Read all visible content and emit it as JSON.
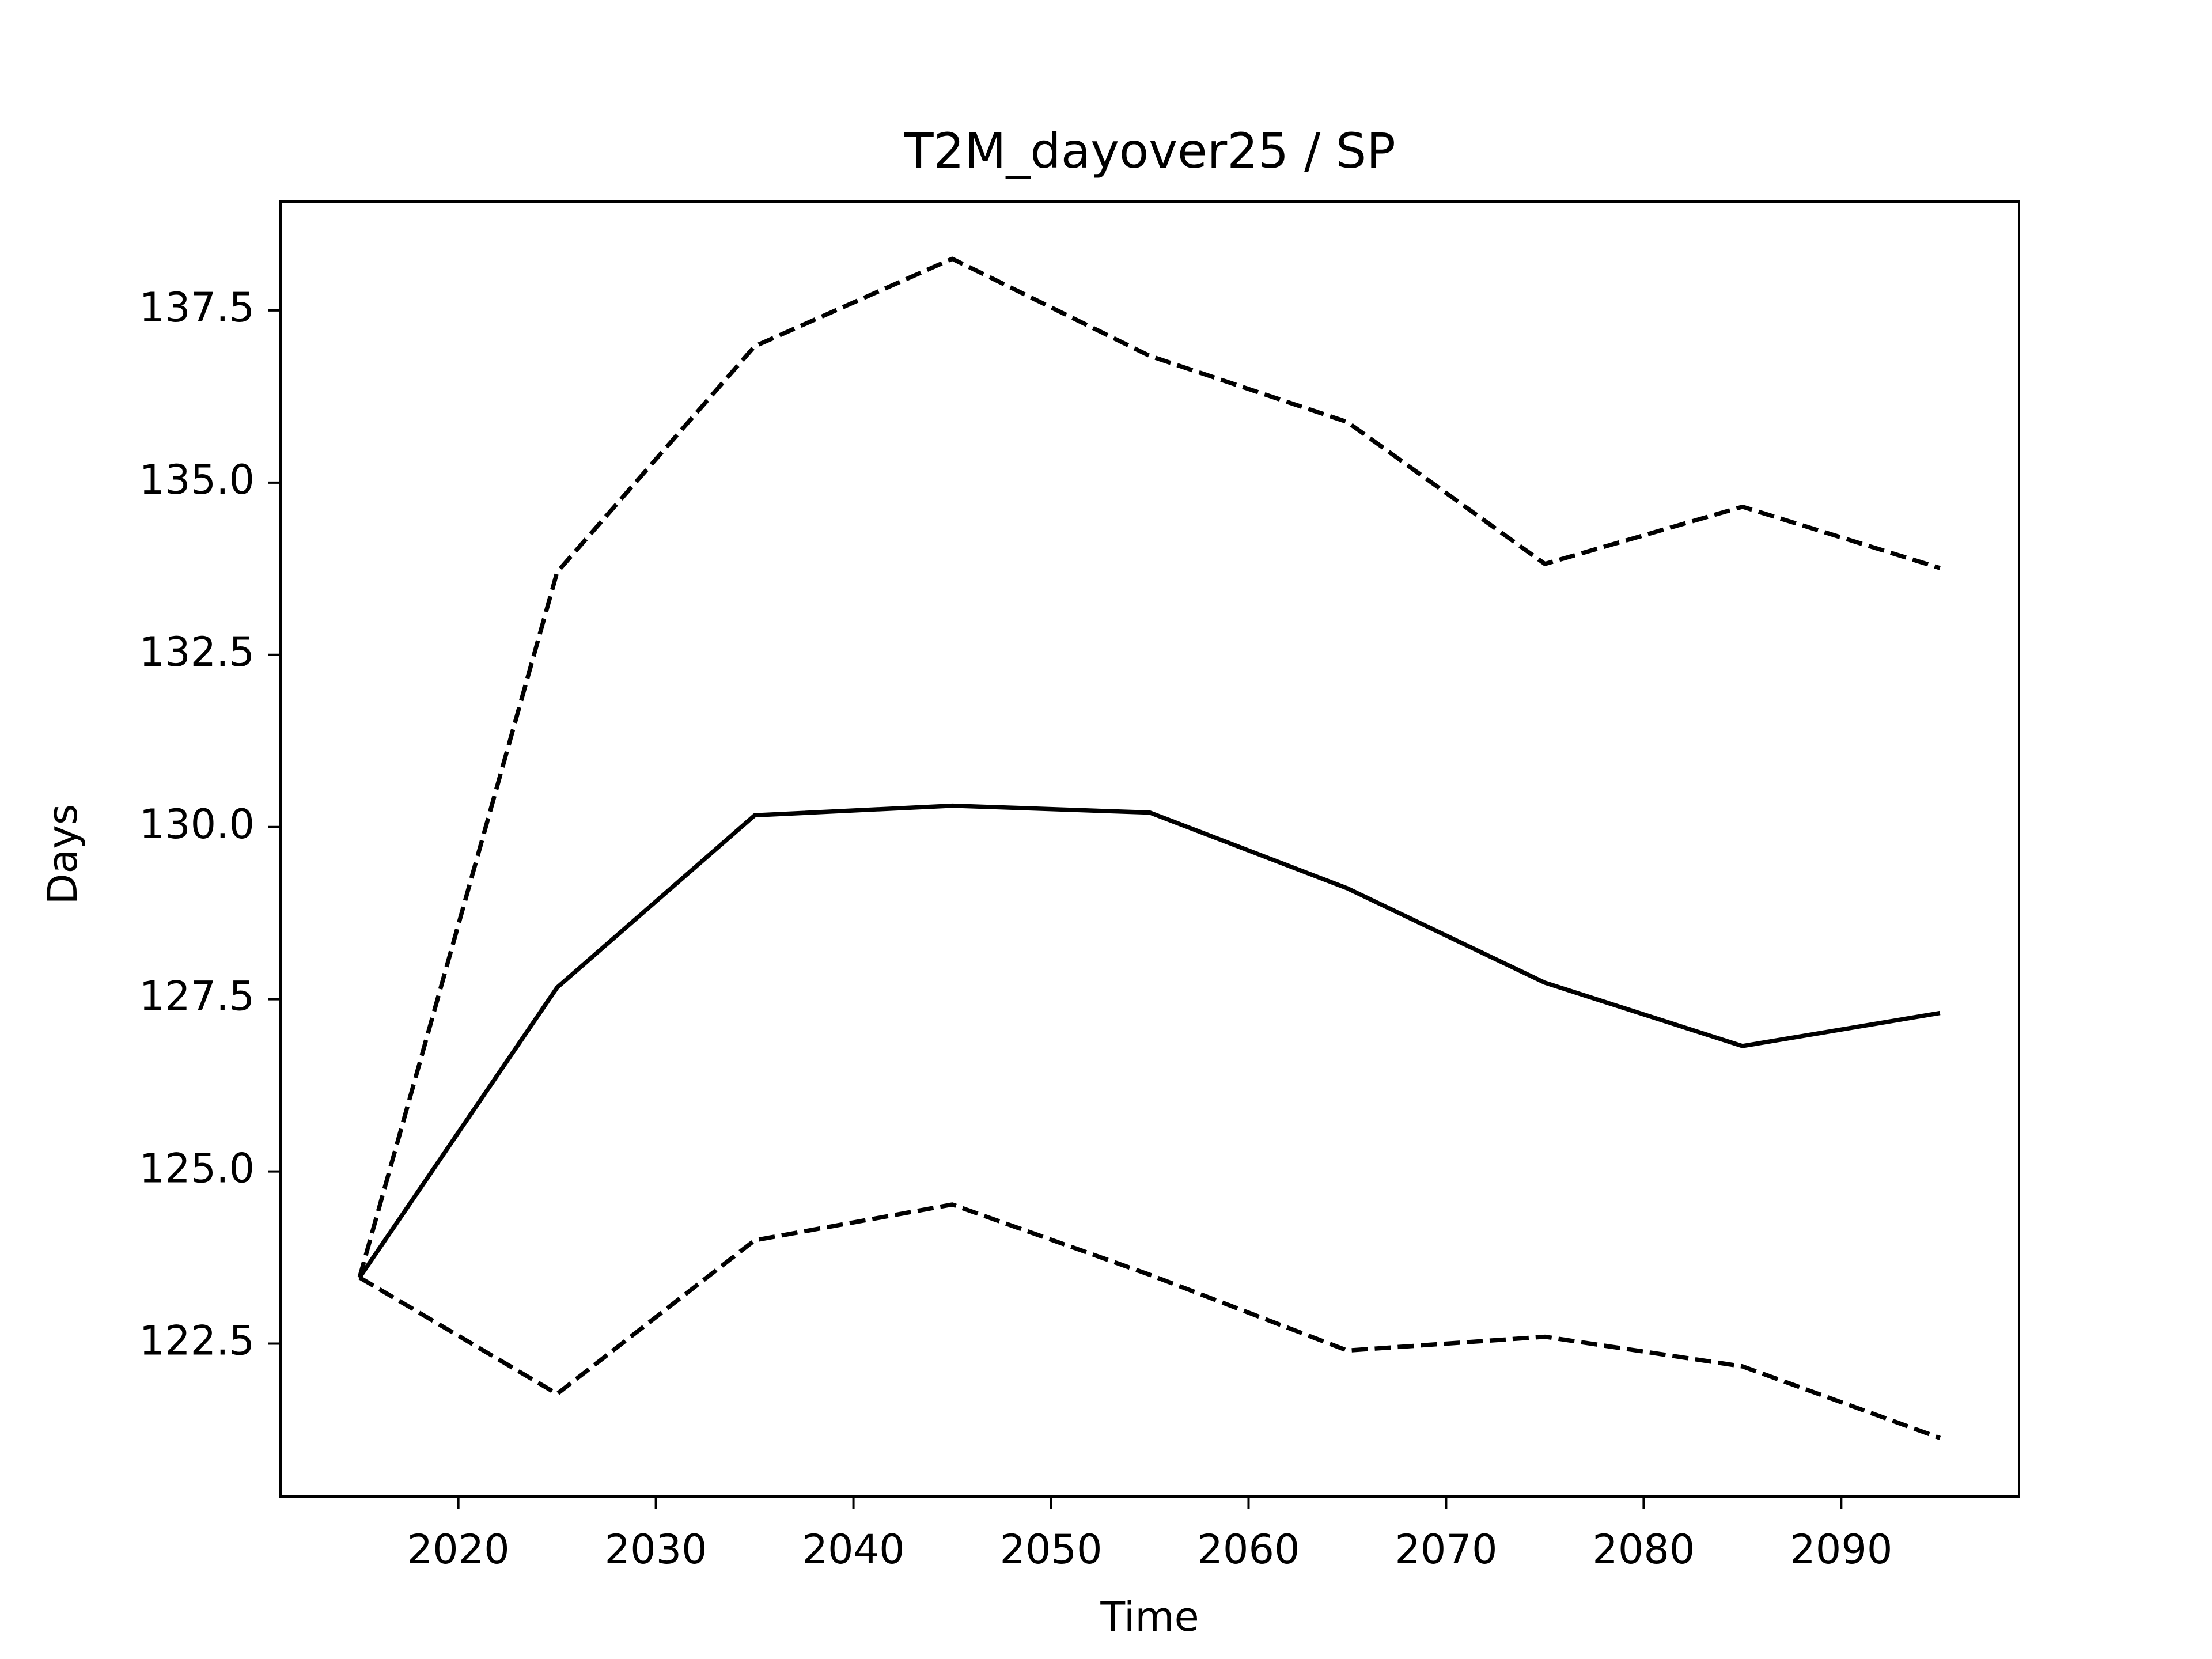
{
  "chart_data": {
    "type": "line",
    "title": "T2M_dayover25 / SP",
    "xlabel": "Time",
    "ylabel": "Days",
    "x": [
      2015,
      2025,
      2035,
      2045,
      2055,
      2065,
      2075,
      2085,
      2095
    ],
    "series": [
      {
        "color": "#000000",
        "dashed": false,
        "values": [
          123.46,
          127.67,
          130.17,
          130.31,
          130.21,
          129.11,
          127.74,
          126.82,
          127.3
        ]
      },
      {
        "color": "#000000",
        "dashed": true,
        "values": [
          123.46,
          133.7,
          136.98,
          138.25,
          136.84,
          135.88,
          133.82,
          134.65,
          133.76
        ]
      },
      {
        "color": "#000000",
        "dashed": true,
        "values": [
          123.46,
          121.77,
          124.0,
          124.52,
          123.5,
          122.4,
          122.6,
          122.17,
          121.13
        ]
      }
    ],
    "xlim": [
      2011,
      2099
    ],
    "xticks": [
      2020,
      2030,
      2040,
      2050,
      2060,
      2070,
      2080,
      2090
    ],
    "ylim": [
      120.28,
      139.08
    ],
    "yticks": [
      122.5,
      {
        "value": 125,
        "label": "125.0"
      },
      127.5,
      {
        "value": 130,
        "label": "130.0"
      },
      132.5,
      {
        "value": 135,
        "label": "135.0"
      },
      137.5
    ],
    "grid": false
  }
}
